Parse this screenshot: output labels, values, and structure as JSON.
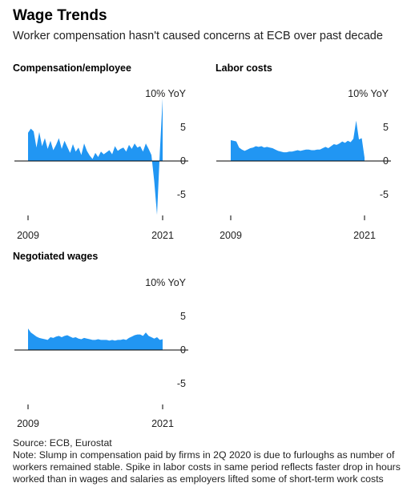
{
  "header": {
    "title": "Wage Trends",
    "subtitle": "Worker compensation hasn't caused concerns at ECB over past decade"
  },
  "footer": {
    "source": "Source: ECB, Eurostat",
    "note": "Note: Slump in compensation paid by firms in 2Q 2020 is due to furloughs as number of workers remained stable. Spike in labor costs in same period reflects faster drop in hours worked than in wages and salaries as employers lifted some of short-term work costs"
  },
  "colors": {
    "series": "#2196f3",
    "axis": "#000000"
  },
  "chart_data": [
    {
      "type": "area",
      "title": "Compensation/employee",
      "x_tick_labels": [
        "2009",
        "2021"
      ],
      "y_tick_labels": [
        "10% YoY",
        "5",
        "0",
        "-5"
      ],
      "y_ticks": [
        10,
        5,
        0,
        -5
      ],
      "ylim": [
        -8,
        10
      ],
      "xlim": [
        2009,
        2021.25
      ],
      "x": [
        2009.0,
        2009.25,
        2009.5,
        2009.75,
        2010.0,
        2010.25,
        2010.5,
        2010.75,
        2011.0,
        2011.25,
        2011.5,
        2011.75,
        2012.0,
        2012.25,
        2012.5,
        2012.75,
        2013.0,
        2013.25,
        2013.5,
        2013.75,
        2014.0,
        2014.25,
        2014.5,
        2014.75,
        2015.0,
        2015.25,
        2015.5,
        2015.75,
        2016.0,
        2016.25,
        2016.5,
        2016.75,
        2017.0,
        2017.25,
        2017.5,
        2017.75,
        2018.0,
        2018.25,
        2018.5,
        2018.75,
        2019.0,
        2019.25,
        2019.5,
        2019.75,
        2020.0,
        2020.25,
        2020.5,
        2020.75,
        2021.0
      ],
      "values": [
        4.2,
        4.8,
        4.4,
        2.0,
        4.3,
        2.2,
        3.4,
        1.8,
        3.0,
        1.6,
        2.4,
        3.4,
        1.8,
        3.0,
        2.1,
        1.2,
        2.5,
        1.4,
        2.0,
        0.9,
        2.6,
        1.5,
        0.8,
        0.3,
        1.2,
        0.6,
        1.4,
        1.0,
        1.3,
        1.6,
        1.0,
        2.2,
        1.5,
        1.8,
        2.0,
        1.4,
        2.4,
        1.8,
        2.6,
        2.0,
        2.2,
        1.4,
        2.6,
        1.8,
        0.9,
        -3.0,
        -8.0,
        1.3,
        9.3
      ]
    },
    {
      "type": "area",
      "title": "Labor costs",
      "x_tick_labels": [
        "2009",
        "2021"
      ],
      "y_tick_labels": [
        "10% YoY",
        "5",
        "0",
        "-5"
      ],
      "y_ticks": [
        10,
        5,
        0,
        -5
      ],
      "ylim": [
        -8,
        10
      ],
      "xlim": [
        2009,
        2021.25
      ],
      "x": [
        2009.0,
        2009.25,
        2009.5,
        2009.75,
        2010.0,
        2010.25,
        2010.5,
        2010.75,
        2011.0,
        2011.25,
        2011.5,
        2011.75,
        2012.0,
        2012.25,
        2012.5,
        2012.75,
        2013.0,
        2013.25,
        2013.5,
        2013.75,
        2014.0,
        2014.25,
        2014.5,
        2014.75,
        2015.0,
        2015.25,
        2015.5,
        2015.75,
        2016.0,
        2016.25,
        2016.5,
        2016.75,
        2017.0,
        2017.25,
        2017.5,
        2017.75,
        2018.0,
        2018.25,
        2018.5,
        2018.75,
        2019.0,
        2019.25,
        2019.5,
        2019.75,
        2020.0,
        2020.25,
        2020.5,
        2020.75,
        2021.0
      ],
      "values": [
        3.1,
        3.0,
        2.9,
        2.0,
        1.7,
        1.5,
        1.7,
        1.9,
        2.0,
        2.2,
        2.1,
        2.2,
        2.0,
        2.1,
        2.0,
        1.9,
        1.7,
        1.5,
        1.4,
        1.3,
        1.3,
        1.4,
        1.4,
        1.5,
        1.6,
        1.5,
        1.6,
        1.7,
        1.7,
        1.6,
        1.6,
        1.7,
        1.7,
        1.9,
        2.1,
        1.9,
        2.2,
        2.5,
        2.4,
        2.6,
        2.9,
        2.7,
        3.0,
        2.8,
        3.3,
        6.0,
        3.2,
        3.4,
        0.5
      ]
    },
    {
      "type": "area",
      "title": "Negotiated wages",
      "x_tick_labels": [
        "2009",
        "2021"
      ],
      "y_tick_labels": [
        "10% YoY",
        "5",
        "0",
        "-5"
      ],
      "y_ticks": [
        10,
        5,
        0,
        -5
      ],
      "ylim": [
        -8,
        10
      ],
      "xlim": [
        2009,
        2021.25
      ],
      "x": [
        2009.0,
        2009.25,
        2009.5,
        2009.75,
        2010.0,
        2010.25,
        2010.5,
        2010.75,
        2011.0,
        2011.25,
        2011.5,
        2011.75,
        2012.0,
        2012.25,
        2012.5,
        2012.75,
        2013.0,
        2013.25,
        2013.5,
        2013.75,
        2014.0,
        2014.25,
        2014.5,
        2014.75,
        2015.0,
        2015.25,
        2015.5,
        2015.75,
        2016.0,
        2016.25,
        2016.5,
        2016.75,
        2017.0,
        2017.25,
        2017.5,
        2017.75,
        2018.0,
        2018.25,
        2018.5,
        2018.75,
        2019.0,
        2019.25,
        2019.5,
        2019.75,
        2020.0,
        2020.25,
        2020.5,
        2020.75,
        2021.0
      ],
      "values": [
        3.2,
        2.6,
        2.3,
        2.0,
        1.8,
        1.7,
        1.6,
        1.5,
        1.9,
        1.8,
        2.0,
        2.1,
        1.9,
        2.1,
        2.2,
        2.0,
        1.8,
        1.9,
        1.7,
        1.6,
        1.8,
        1.7,
        1.6,
        1.5,
        1.5,
        1.6,
        1.5,
        1.5,
        1.5,
        1.4,
        1.5,
        1.4,
        1.5,
        1.5,
        1.6,
        1.5,
        1.8,
        2.0,
        2.2,
        2.3,
        2.3,
        2.1,
        2.6,
        2.1,
        1.9,
        1.7,
        1.9,
        1.5,
        1.6
      ]
    }
  ]
}
